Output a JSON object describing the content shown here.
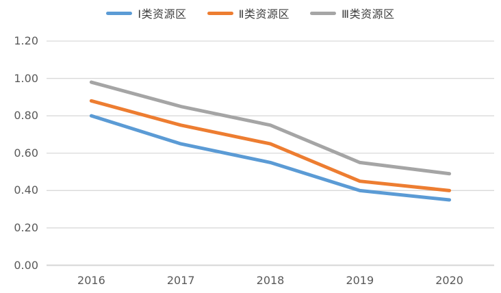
{
  "chart_data": {
    "type": "line",
    "title": "",
    "xlabel": "",
    "ylabel": "",
    "categories": [
      "2016",
      "2017",
      "2018",
      "2019",
      "2020"
    ],
    "series": [
      {
        "name": "Ⅰ类资源区",
        "color": "#5B9BD5",
        "values": [
          0.8,
          0.65,
          0.55,
          0.4,
          0.35
        ]
      },
      {
        "name": "Ⅱ类资源区",
        "color": "#ED7D31",
        "values": [
          0.88,
          0.75,
          0.65,
          0.45,
          0.4
        ]
      },
      {
        "name": "Ⅲ类资源区",
        "color": "#A5A5A5",
        "values": [
          0.98,
          0.85,
          0.75,
          0.55,
          0.49
        ]
      }
    ],
    "ylim": [
      0.0,
      1.2
    ],
    "ytick_step": 0.2,
    "ytick_labels": [
      "0.00",
      "0.20",
      "0.40",
      "0.60",
      "0.80",
      "1.00",
      "1.20"
    ],
    "grid": "horizontal",
    "legend_position": "top",
    "colors": {
      "background": "#FFFFFF",
      "gridline": "#D9D9D9",
      "axis_line": "#D6D6D6",
      "tick_label": "#595959",
      "legend_text": "#3F3F3F"
    }
  }
}
